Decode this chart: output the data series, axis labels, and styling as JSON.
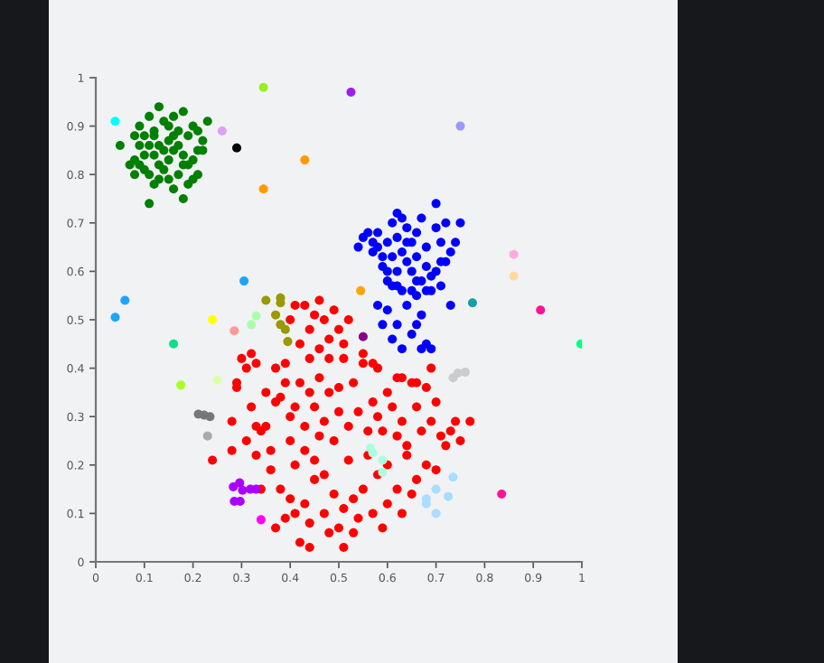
{
  "chart_data": {
    "type": "scatter",
    "xlim": [
      0,
      1
    ],
    "ylim": [
      0,
      1
    ],
    "xticks": [
      0,
      0.1,
      0.2,
      0.3,
      0.4,
      0.5,
      0.6,
      0.7,
      0.8,
      0.9,
      1
    ],
    "yticks": [
      0,
      0.1,
      0.2,
      0.3,
      0.4,
      0.5,
      0.6,
      0.7,
      0.8,
      0.9,
      1
    ],
    "marker": "circle",
    "series": [
      {
        "color": "#008000",
        "x": [
          0.05,
          0.08,
          0.09,
          0.1,
          0.11,
          0.12,
          0.13,
          0.14,
          0.15,
          0.16,
          0.17,
          0.18,
          0.19,
          0.2,
          0.21,
          0.22,
          0.23,
          0.21,
          0.2,
          0.21,
          0.2,
          0.19,
          0.18,
          0.17,
          0.16,
          0.15,
          0.14,
          0.13,
          0.12,
          0.11,
          0.1,
          0.09,
          0.08,
          0.07,
          0.08,
          0.1,
          0.11,
          0.12,
          0.13,
          0.14,
          0.15,
          0.16,
          0.17,
          0.18,
          0.19,
          0.11,
          0.18,
          0.16,
          0.13,
          0.22,
          0.12,
          0.09,
          0.15
        ],
        "values": [
          0.86,
          0.88,
          0.9,
          0.88,
          0.92,
          0.89,
          0.94,
          0.91,
          0.9,
          0.92,
          0.89,
          0.93,
          0.88,
          0.9,
          0.89,
          0.87,
          0.91,
          0.85,
          0.83,
          0.8,
          0.79,
          0.82,
          0.84,
          0.86,
          0.85,
          0.87,
          0.85,
          0.86,
          0.84,
          0.86,
          0.84,
          0.82,
          0.83,
          0.82,
          0.8,
          0.81,
          0.8,
          0.78,
          0.79,
          0.81,
          0.83,
          0.77,
          0.8,
          0.82,
          0.78,
          0.74,
          0.75,
          0.88,
          0.82,
          0.85,
          0.88,
          0.86,
          0.79
        ]
      },
      {
        "color": "#0000ff",
        "x": [
          0.54,
          0.55,
          0.56,
          0.57,
          0.58,
          0.58,
          0.59,
          0.6,
          0.6,
          0.61,
          0.62,
          0.62,
          0.63,
          0.63,
          0.64,
          0.64,
          0.65,
          0.65,
          0.66,
          0.66,
          0.67,
          0.67,
          0.68,
          0.68,
          0.69,
          0.7,
          0.7,
          0.7,
          0.71,
          0.71,
          0.72,
          0.72,
          0.73,
          0.74,
          0.75,
          0.73,
          0.62,
          0.61,
          0.6,
          0.63,
          0.65,
          0.66,
          0.69,
          0.64,
          0.61,
          0.59,
          0.57,
          0.68,
          0.71,
          0.66,
          0.58,
          0.59,
          0.6,
          0.61,
          0.62,
          0.63,
          0.64,
          0.65,
          0.66,
          0.67,
          0.68,
          0.69,
          0.62,
          0.67
        ],
        "values": [
          0.65,
          0.67,
          0.68,
          0.66,
          0.68,
          0.65,
          0.63,
          0.66,
          0.6,
          0.7,
          0.67,
          0.72,
          0.64,
          0.71,
          0.69,
          0.62,
          0.66,
          0.6,
          0.68,
          0.63,
          0.71,
          0.58,
          0.65,
          0.61,
          0.56,
          0.69,
          0.74,
          0.6,
          0.66,
          0.62,
          0.7,
          0.62,
          0.64,
          0.66,
          0.7,
          0.53,
          0.6,
          0.57,
          0.58,
          0.56,
          0.56,
          0.55,
          0.59,
          0.66,
          0.63,
          0.61,
          0.64,
          0.56,
          0.57,
          0.58,
          0.53,
          0.49,
          0.52,
          0.46,
          0.49,
          0.44,
          0.53,
          0.47,
          0.49,
          0.51,
          0.45,
          0.44,
          0.57,
          0.44
        ]
      },
      {
        "color": "#ff0000",
        "x": [
          0.24,
          0.28,
          0.28,
          0.29,
          0.29,
          0.3,
          0.31,
          0.32,
          0.33,
          0.32,
          0.33,
          0.31,
          0.33,
          0.34,
          0.35,
          0.36,
          0.37,
          0.37,
          0.38,
          0.39,
          0.39,
          0.4,
          0.4,
          0.41,
          0.41,
          0.42,
          0.43,
          0.43,
          0.44,
          0.44,
          0.45,
          0.45,
          0.46,
          0.47,
          0.47,
          0.48,
          0.48,
          0.49,
          0.5,
          0.5,
          0.51,
          0.52,
          0.52,
          0.53,
          0.54,
          0.55,
          0.56,
          0.57,
          0.57,
          0.58,
          0.59,
          0.6,
          0.61,
          0.62,
          0.62,
          0.63,
          0.64,
          0.65,
          0.66,
          0.67,
          0.68,
          0.69,
          0.69,
          0.7,
          0.71,
          0.72,
          0.73,
          0.74,
          0.75,
          0.77,
          0.7,
          0.68,
          0.66,
          0.64,
          0.62,
          0.6,
          0.59,
          0.57,
          0.55,
          0.54,
          0.53,
          0.51,
          0.5,
          0.49,
          0.48,
          0.47,
          0.45,
          0.44,
          0.44,
          0.43,
          0.42,
          0.41,
          0.4,
          0.39,
          0.38,
          0.37,
          0.51,
          0.53,
          0.4,
          0.41,
          0.43,
          0.44,
          0.45,
          0.46,
          0.47,
          0.48,
          0.49,
          0.5,
          0.51,
          0.52,
          0.46,
          0.42,
          0.55,
          0.58,
          0.63,
          0.66,
          0.35,
          0.36,
          0.34,
          0.46,
          0.56,
          0.6,
          0.65,
          0.63,
          0.58
        ],
        "values": [
          0.21,
          0.29,
          0.23,
          0.36,
          0.37,
          0.42,
          0.4,
          0.43,
          0.41,
          0.32,
          0.28,
          0.25,
          0.22,
          0.27,
          0.28,
          0.23,
          0.4,
          0.33,
          0.34,
          0.37,
          0.41,
          0.3,
          0.25,
          0.2,
          0.32,
          0.37,
          0.28,
          0.23,
          0.42,
          0.35,
          0.32,
          0.21,
          0.38,
          0.29,
          0.18,
          0.42,
          0.35,
          0.25,
          0.31,
          0.36,
          0.42,
          0.28,
          0.21,
          0.37,
          0.31,
          0.41,
          0.27,
          0.33,
          0.41,
          0.3,
          0.27,
          0.35,
          0.32,
          0.26,
          0.38,
          0.29,
          0.24,
          0.37,
          0.32,
          0.27,
          0.36,
          0.29,
          0.4,
          0.33,
          0.26,
          0.24,
          0.27,
          0.29,
          0.25,
          0.29,
          0.19,
          0.2,
          0.17,
          0.22,
          0.15,
          0.12,
          0.07,
          0.1,
          0.15,
          0.09,
          0.13,
          0.11,
          0.07,
          0.14,
          0.06,
          0.1,
          0.17,
          0.08,
          0.03,
          0.12,
          0.04,
          0.1,
          0.13,
          0.09,
          0.15,
          0.07,
          0.03,
          0.06,
          0.5,
          0.53,
          0.53,
          0.48,
          0.51,
          0.54,
          0.5,
          0.46,
          0.52,
          0.48,
          0.45,
          0.5,
          0.44,
          0.45,
          0.43,
          0.4,
          0.38,
          0.37,
          0.35,
          0.19,
          0.15,
          0.26,
          0.22,
          0.2,
          0.14,
          0.1,
          0.18
        ]
      },
      {
        "color": "#99ee22",
        "x": [
          0.345
        ],
        "values": [
          0.98
        ]
      },
      {
        "color": "#9b1ff0",
        "x": [
          0.525
        ],
        "values": [
          0.97
        ]
      },
      {
        "color": "#9999ff",
        "x": [
          0.75
        ],
        "values": [
          0.9
        ]
      },
      {
        "color": "#00ffff",
        "x": [
          0.04
        ],
        "values": [
          0.91
        ]
      },
      {
        "color": "#dda0f5",
        "x": [
          0.26
        ],
        "values": [
          0.89
        ]
      },
      {
        "color": "#000000",
        "x": [
          0.29
        ],
        "values": [
          0.855
        ]
      },
      {
        "color": "#ff9900",
        "x": [
          0.43,
          0.345
        ],
        "values": [
          0.83,
          0.77
        ]
      },
      {
        "color": "#1ea3ff",
        "x": [
          0.305,
          0.06,
          0.04
        ],
        "values": [
          0.58,
          0.54,
          0.505
        ]
      },
      {
        "color": "#ffaadd",
        "x": [
          0.86
        ],
        "values": [
          0.635
        ]
      },
      {
        "color": "#ffd9a0",
        "x": [
          0.86
        ],
        "values": [
          0.59
        ]
      },
      {
        "color": "#ffa500",
        "x": [
          0.545
        ],
        "values": [
          0.56
        ]
      },
      {
        "color": "#16a0a0",
        "x": [
          0.775
        ],
        "values": [
          0.535
        ]
      },
      {
        "color": "#ff1493",
        "x": [
          0.915,
          0.835
        ],
        "values": [
          0.52,
          0.14
        ]
      },
      {
        "color": "#00ff80",
        "x": [
          0.998
        ],
        "values": [
          0.45
        ]
      },
      {
        "color": "#11dd88",
        "x": [
          0.16
        ],
        "values": [
          0.45
        ]
      },
      {
        "color": "#999900",
        "x": [
          0.35,
          0.38,
          0.38,
          0.37,
          0.38,
          0.39,
          0.395
        ],
        "values": [
          0.54,
          0.545,
          0.535,
          0.51,
          0.49,
          0.48,
          0.455
        ]
      },
      {
        "color": "#880088",
        "x": [
          0.55
        ],
        "values": [
          0.465
        ]
      },
      {
        "color": "#ffff00",
        "x": [
          0.24
        ],
        "values": [
          0.5
        ]
      },
      {
        "color": "#ff9999",
        "x": [
          0.285
        ],
        "values": [
          0.477
        ]
      },
      {
        "color": "#aaffaa",
        "x": [
          0.33,
          0.32
        ],
        "values": [
          0.508,
          0.49
        ]
      },
      {
        "color": "#aaff22",
        "x": [
          0.175
        ],
        "values": [
          0.365
        ]
      },
      {
        "color": "#ddffaa",
        "x": [
          0.25
        ],
        "values": [
          0.375
        ]
      },
      {
        "color": "#777777",
        "x": [
          0.211,
          0.223,
          0.235
        ],
        "values": [
          0.305,
          0.303,
          0.3
        ]
      },
      {
        "color": "#aaaaaa",
        "x": [
          0.23
        ],
        "values": [
          0.26
        ]
      },
      {
        "color": "#cccccc",
        "x": [
          0.735,
          0.745,
          0.76
        ],
        "values": [
          0.38,
          0.39,
          0.392
        ]
      },
      {
        "color": "#aaffdd",
        "x": [
          0.565,
          0.57,
          0.59,
          0.59
        ],
        "values": [
          0.235,
          0.225,
          0.21,
          0.185
        ]
      },
      {
        "color": "#aaddff",
        "x": [
          0.68,
          0.68,
          0.7,
          0.725,
          0.735,
          0.7
        ],
        "values": [
          0.13,
          0.12,
          0.15,
          0.135,
          0.175,
          0.1
        ]
      },
      {
        "color": "#aa00ff",
        "x": [
          0.283,
          0.296,
          0.302,
          0.318,
          0.33,
          0.285,
          0.297
        ],
        "values": [
          0.155,
          0.163,
          0.148,
          0.15,
          0.15,
          0.125,
          0.125
        ]
      },
      {
        "color": "#ff00ff",
        "x": [
          0.34
        ],
        "values": [
          0.087
        ]
      }
    ]
  }
}
